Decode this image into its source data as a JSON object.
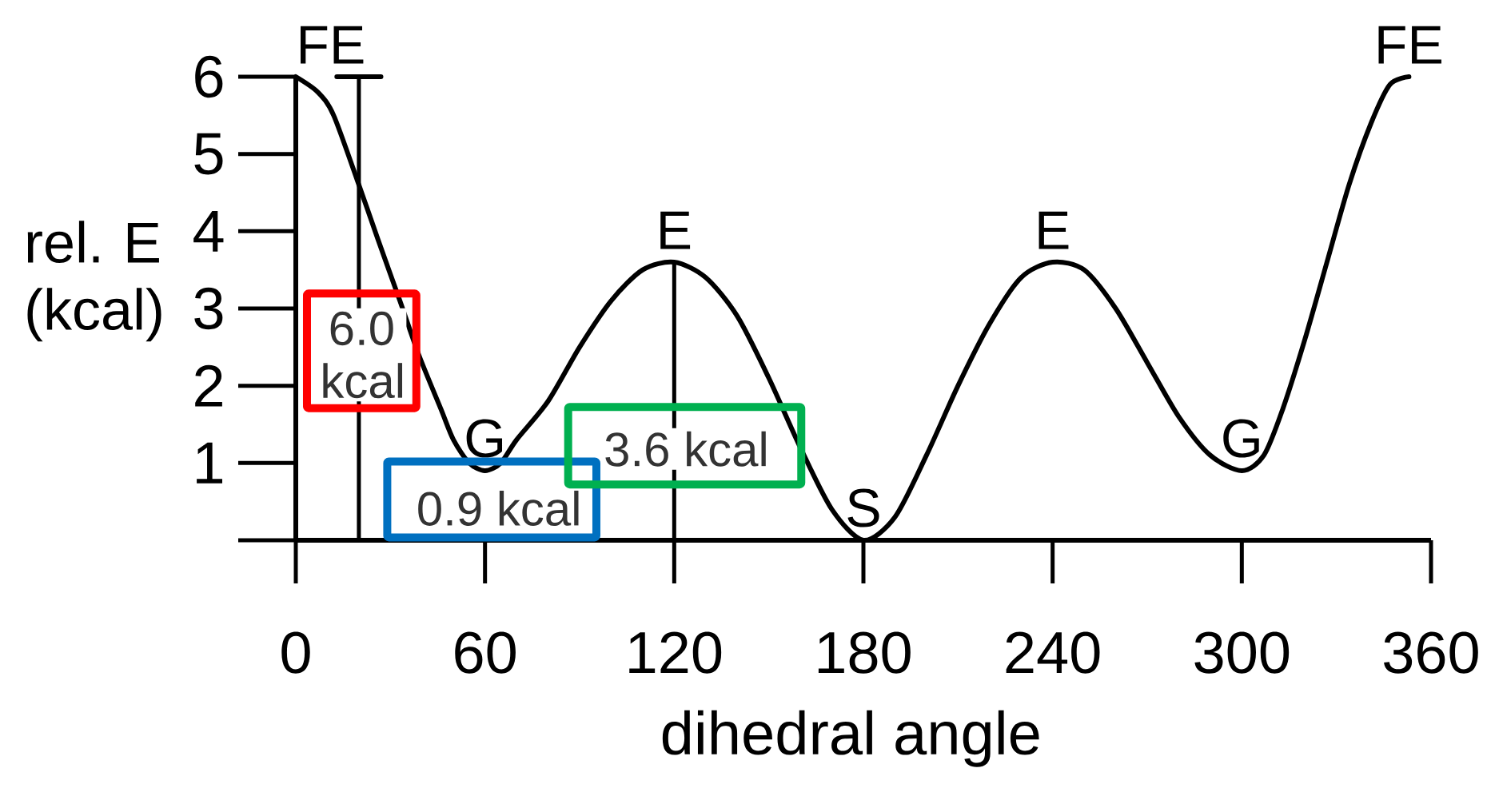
{
  "chart_data": {
    "type": "line",
    "xlabel": "dihedral angle",
    "ylabel": "rel. E (kcal)",
    "series": [
      {
        "color": "#000000",
        "x": [
          0,
          7,
          12,
          20,
          26,
          33,
          39,
          46,
          50,
          55,
          60,
          65,
          70,
          80,
          90,
          100,
          110,
          120,
          130,
          140,
          150,
          160,
          170,
          180,
          190,
          200,
          210,
          220,
          230,
          240,
          250,
          260,
          270,
          280,
          290,
          300,
          307,
          313,
          320,
          327,
          334,
          341,
          347,
          353
        ],
        "values": [
          6.0,
          5.8,
          5.5,
          4.6,
          3.9,
          3.1,
          2.4,
          1.7,
          1.3,
          1.0,
          0.9,
          1.0,
          1.3,
          1.8,
          2.5,
          3.1,
          3.5,
          3.6,
          3.4,
          2.9,
          2.1,
          1.2,
          0.4,
          0,
          0.3,
          1.1,
          2.0,
          2.8,
          3.4,
          3.6,
          3.5,
          3.0,
          2.3,
          1.6,
          1.1,
          0.9,
          1.1,
          1.7,
          2.6,
          3.6,
          4.6,
          5.4,
          5.9,
          6.0
        ],
        "value_labels": [
          "FE",
          null,
          null,
          null,
          null,
          null,
          null,
          null,
          null,
          null,
          "G",
          null,
          null,
          null,
          null,
          null,
          null,
          "E",
          null,
          null,
          null,
          null,
          null,
          "S",
          null,
          null,
          null,
          null,
          null,
          "E",
          null,
          null,
          null,
          null,
          null,
          "G",
          null,
          null,
          null,
          null,
          null,
          null,
          null,
          "FE"
        ]
      },
      {
        "type": "bar",
        "color": "#000000",
        "x": [
          20,
          120
        ],
        "values": [
          6,
          3.6
        ]
      },
      {
        "color": "#000000",
        "x": [
          13,
          27
        ],
        "values": [
          6,
          6
        ]
      }
    ],
    "xlim": [
      0,
      360
    ],
    "xticks": [
      0,
      60,
      120,
      180,
      240,
      300,
      360
    ],
    "ylim": [
      0,
      6
    ],
    "yticks": [
      {
        "value": 0,
        "label": null
      },
      1,
      2,
      3,
      4,
      5,
      6
    ],
    "annotations": [
      "6.0 kcal",
      "0.9 kcal",
      "3.6 kcal"
    ]
  }
}
